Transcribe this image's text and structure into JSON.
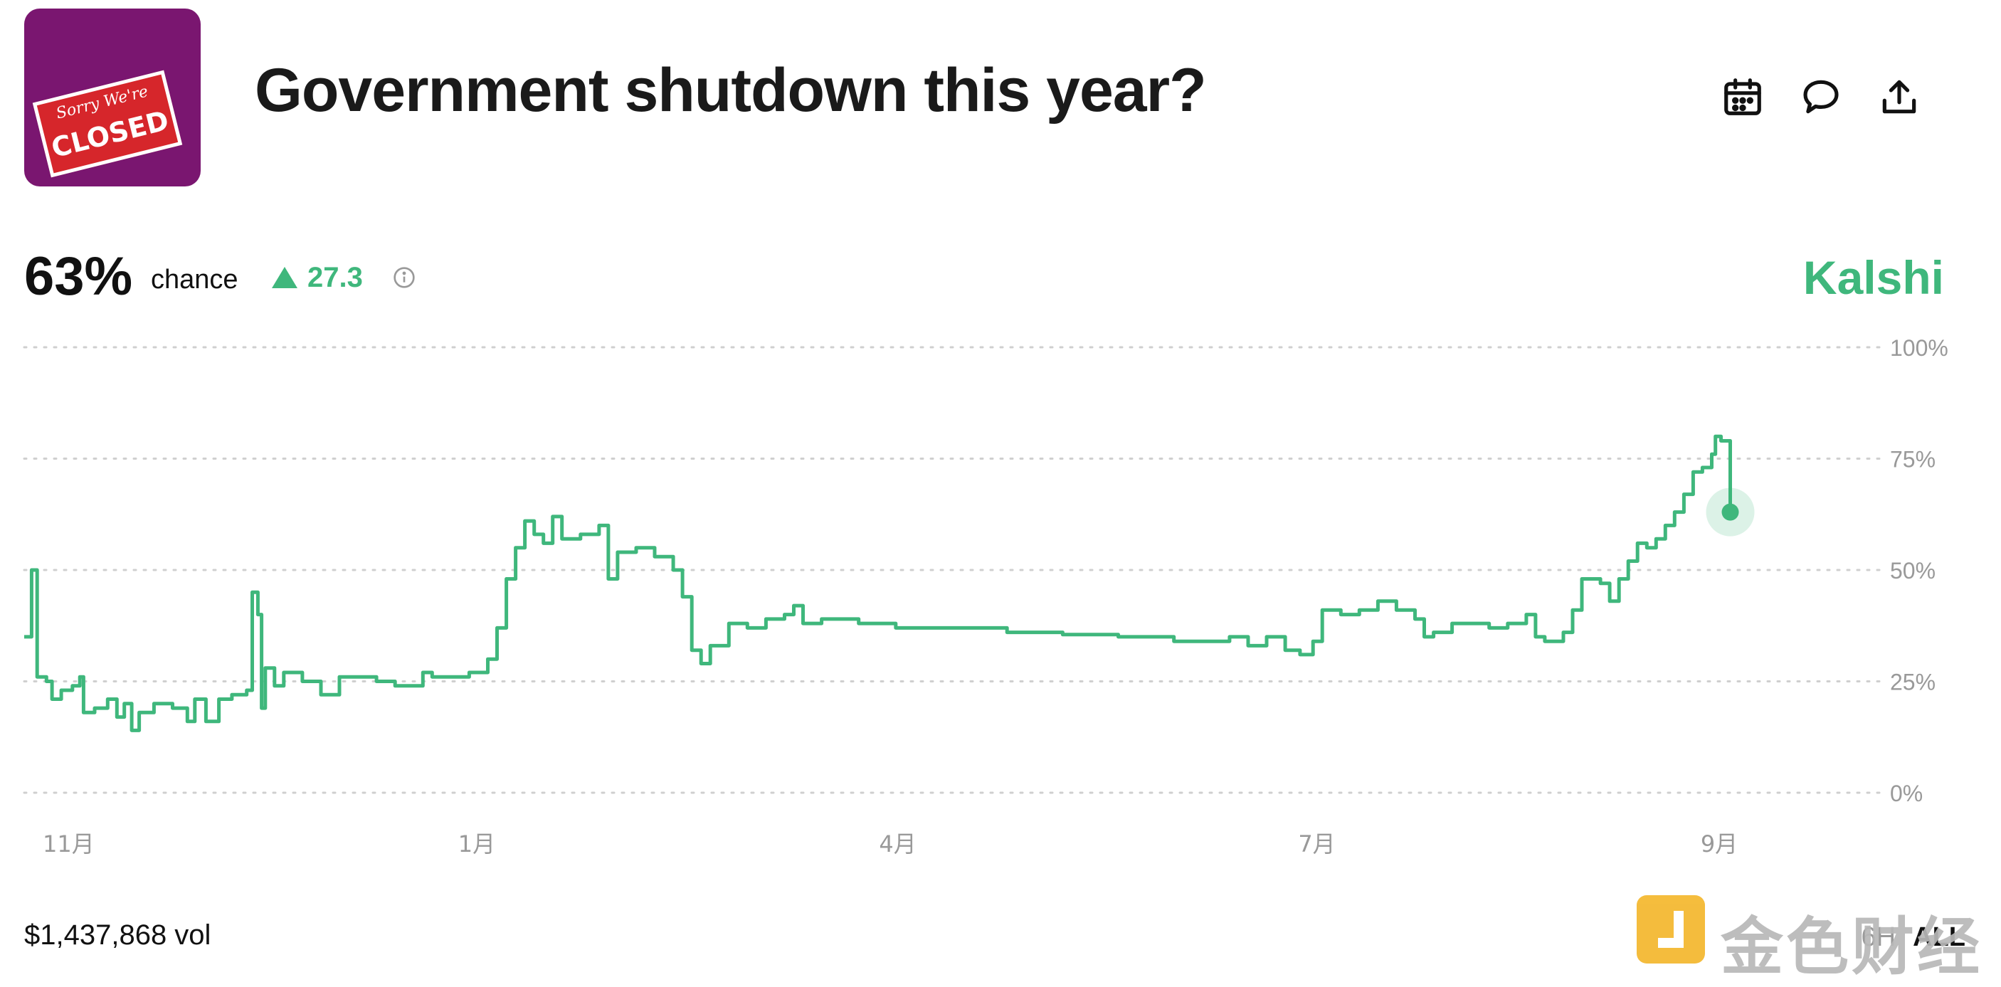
{
  "market": {
    "title": "Government shutdown this year?",
    "chance_value": "63%",
    "chance_label": "chance",
    "delta": "27.3",
    "source": "Kalshi",
    "volume": "$1,437,868 vol",
    "thumbnail_text": [
      "Sorry We're",
      "CLOSED"
    ]
  },
  "header_icons": [
    "calendar-icon",
    "comment-icon",
    "share-icon"
  ],
  "range_buttons": {
    "partial": "6H",
    "active": "ALL"
  },
  "watermark": "金色财经",
  "colors": {
    "accent": "#3fb77c",
    "grid": "#cfcfcf",
    "axis_text": "#999999",
    "thumbnail_bg": "#7a1670"
  },
  "chart_data": {
    "type": "line",
    "title": "",
    "xlabel": "",
    "ylabel": "",
    "ylim": [
      0,
      100
    ],
    "y_ticks": [
      {
        "value": 100,
        "label": "100%"
      },
      {
        "value": 75,
        "label": "75%"
      },
      {
        "value": 50,
        "label": "50%"
      },
      {
        "value": 25,
        "label": "25%"
      },
      {
        "value": 0,
        "label": "0%"
      }
    ],
    "x_ticks": [
      {
        "x": 0.01,
        "label": "11月"
      },
      {
        "x": 0.234,
        "label": "1月"
      },
      {
        "x": 0.461,
        "label": "4月"
      },
      {
        "x": 0.687,
        "label": "7月"
      },
      {
        "x": 0.904,
        "label": "9月"
      }
    ],
    "grid": true,
    "legend": "none",
    "series": [
      {
        "values": [
          [
            0.0,
            35
          ],
          [
            0.004,
            50
          ],
          [
            0.006,
            50
          ],
          [
            0.007,
            26
          ],
          [
            0.012,
            25
          ],
          [
            0.015,
            21
          ],
          [
            0.02,
            23
          ],
          [
            0.026,
            24
          ],
          [
            0.03,
            26
          ],
          [
            0.032,
            18
          ],
          [
            0.038,
            19
          ],
          [
            0.045,
            21
          ],
          [
            0.05,
            17
          ],
          [
            0.054,
            20
          ],
          [
            0.058,
            14
          ],
          [
            0.062,
            18
          ],
          [
            0.07,
            20
          ],
          [
            0.08,
            19
          ],
          [
            0.088,
            16
          ],
          [
            0.092,
            21
          ],
          [
            0.098,
            16
          ],
          [
            0.105,
            21
          ],
          [
            0.112,
            22
          ],
          [
            0.12,
            23
          ],
          [
            0.123,
            45
          ],
          [
            0.126,
            40
          ],
          [
            0.128,
            19
          ],
          [
            0.13,
            28
          ],
          [
            0.135,
            24
          ],
          [
            0.14,
            27
          ],
          [
            0.15,
            25
          ],
          [
            0.16,
            22
          ],
          [
            0.17,
            26
          ],
          [
            0.18,
            26
          ],
          [
            0.19,
            25
          ],
          [
            0.2,
            24
          ],
          [
            0.21,
            24
          ],
          [
            0.215,
            27
          ],
          [
            0.22,
            26
          ],
          [
            0.23,
            26
          ],
          [
            0.24,
            27
          ],
          [
            0.25,
            30
          ],
          [
            0.255,
            37
          ],
          [
            0.26,
            48
          ],
          [
            0.265,
            55
          ],
          [
            0.27,
            61
          ],
          [
            0.275,
            58
          ],
          [
            0.28,
            56
          ],
          [
            0.285,
            62
          ],
          [
            0.29,
            57
          ],
          [
            0.3,
            58
          ],
          [
            0.31,
            60
          ],
          [
            0.315,
            48
          ],
          [
            0.32,
            54
          ],
          [
            0.33,
            55
          ],
          [
            0.34,
            53
          ],
          [
            0.35,
            50
          ],
          [
            0.355,
            44
          ],
          [
            0.36,
            32
          ],
          [
            0.365,
            29
          ],
          [
            0.37,
            33
          ],
          [
            0.38,
            38
          ],
          [
            0.39,
            37
          ],
          [
            0.4,
            39
          ],
          [
            0.41,
            40
          ],
          [
            0.415,
            42
          ],
          [
            0.42,
            38
          ],
          [
            0.43,
            39
          ],
          [
            0.45,
            38
          ],
          [
            0.47,
            37
          ],
          [
            0.5,
            37
          ],
          [
            0.53,
            36
          ],
          [
            0.56,
            35.5
          ],
          [
            0.59,
            35
          ],
          [
            0.62,
            34
          ],
          [
            0.65,
            35
          ],
          [
            0.66,
            33
          ],
          [
            0.67,
            35
          ],
          [
            0.68,
            32
          ],
          [
            0.688,
            31
          ],
          [
            0.695,
            34
          ],
          [
            0.7,
            41
          ],
          [
            0.71,
            40
          ],
          [
            0.72,
            41
          ],
          [
            0.73,
            43
          ],
          [
            0.74,
            41
          ],
          [
            0.75,
            39
          ],
          [
            0.755,
            35
          ],
          [
            0.76,
            36
          ],
          [
            0.77,
            38
          ],
          [
            0.78,
            38
          ],
          [
            0.79,
            37
          ],
          [
            0.8,
            38
          ],
          [
            0.81,
            40
          ],
          [
            0.815,
            35
          ],
          [
            0.82,
            34
          ],
          [
            0.83,
            36
          ],
          [
            0.835,
            41
          ],
          [
            0.84,
            48
          ],
          [
            0.85,
            47
          ],
          [
            0.855,
            43
          ],
          [
            0.86,
            48
          ],
          [
            0.865,
            52
          ],
          [
            0.87,
            56
          ],
          [
            0.875,
            55
          ],
          [
            0.88,
            57
          ],
          [
            0.885,
            60
          ],
          [
            0.89,
            63
          ],
          [
            0.895,
            67
          ],
          [
            0.9,
            72
          ],
          [
            0.905,
            73
          ],
          [
            0.91,
            76
          ],
          [
            0.912,
            80
          ],
          [
            0.915,
            79
          ],
          [
            0.92,
            63
          ]
        ]
      }
    ],
    "current_point": {
      "x": 0.92,
      "y": 63
    }
  }
}
